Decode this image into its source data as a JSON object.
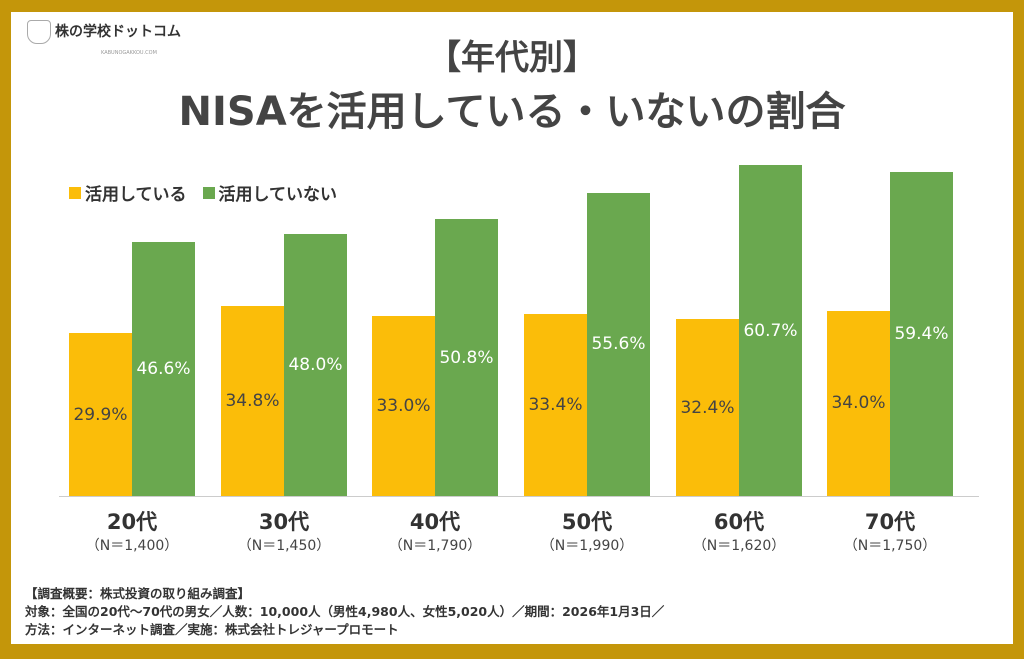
{
  "logo": {
    "text": "株の学校ドットコム",
    "sub": "KABUNOGAKKOU.COM",
    "mark": "KG"
  },
  "title_line1": "【年代別】",
  "title_line2": "NISAを活用している・いないの割合",
  "colors": {
    "border": "#c4960a",
    "using": "#fbbd09",
    "not_using": "#6aa84f"
  },
  "chart_data": {
    "type": "bar",
    "title": "【年代別】NISAを活用している・いないの割合",
    "categories": [
      "20代",
      "30代",
      "40代",
      "50代",
      "60代",
      "70代"
    ],
    "sample_sizes": [
      "（N＝1,400）",
      "（N＝1,450）",
      "（N＝1,790）",
      "（N＝1,990）",
      "（N＝1,620）",
      "（N＝1,750）"
    ],
    "series": [
      {
        "name": "活用している",
        "values": [
          29.9,
          34.8,
          33.0,
          33.4,
          32.4,
          34.0
        ],
        "labels": [
          "29.9%",
          "34.8%",
          "33.0%",
          "33.4%",
          "32.4%",
          "34.0%"
        ]
      },
      {
        "name": "活用していない",
        "values": [
          46.6,
          48.0,
          50.8,
          55.6,
          60.7,
          59.4
        ],
        "labels": [
          "46.6%",
          "48.0%",
          "50.8%",
          "55.6%",
          "60.7%",
          "59.4%"
        ]
      }
    ],
    "unit": "%",
    "legend": "top-left",
    "grid": false
  },
  "footer": {
    "line1": "【調査概要：株式投資の取り組み調査】",
    "line2": "対象：全国の20代～70代の男女／人数：10,000人（男性4,980人、女性5,020人）／期間：2026年1月3日／",
    "line3": "方法：インターネット調査／実施：株式会社トレジャープロモート"
  }
}
